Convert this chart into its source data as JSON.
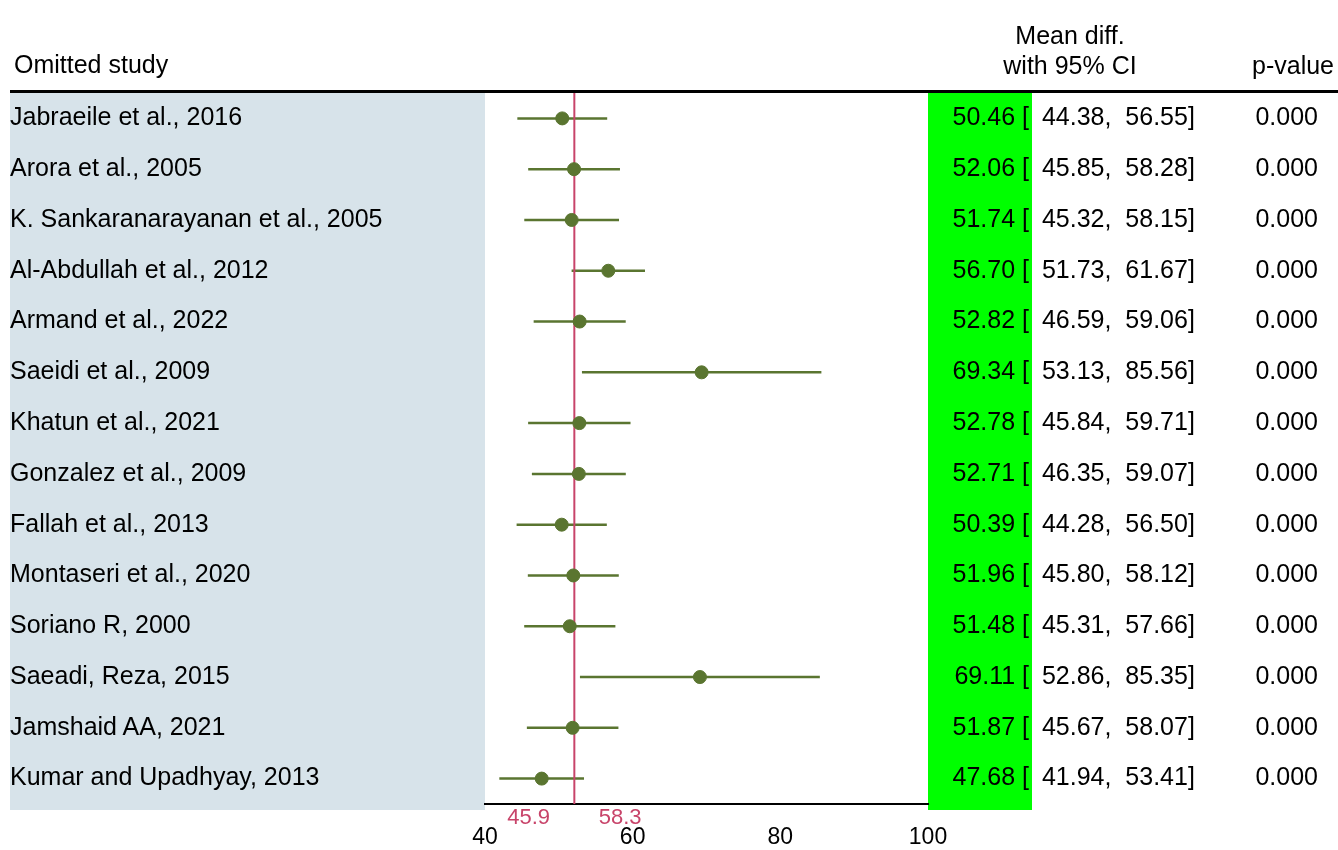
{
  "chart_data": {
    "type": "scatter",
    "orientation": "horizontal",
    "ylabel": "Omitted study",
    "categories": [
      "Jabraeile et al., 2016",
      "Arora et al., 2005",
      "K. Sankaranarayanan et al., 2005",
      "Al-Abdullah et al., 2012",
      "Armand et al., 2022",
      "Saeidi et al., 2009",
      "Khatun et al., 2021",
      "Gonzalez et al., 2009",
      "Fallah et al., 2013",
      "Montaseri et al., 2020",
      "Soriano R, 2000",
      "Saeadi, Reza, 2015",
      "Jamshaid AA, 2021",
      "Kumar and Upadhyay, 2013"
    ],
    "values": [
      50.46,
      52.06,
      51.74,
      56.7,
      52.82,
      69.34,
      52.78,
      52.71,
      50.39,
      51.96,
      51.48,
      69.11,
      51.87,
      47.68
    ],
    "errors": [
      [
        44.38,
        56.55
      ],
      [
        45.85,
        58.28
      ],
      [
        45.32,
        58.15
      ],
      [
        51.73,
        61.67
      ],
      [
        46.59,
        59.06
      ],
      [
        53.13,
        85.56
      ],
      [
        45.84,
        59.71
      ],
      [
        46.35,
        59.07
      ],
      [
        44.28,
        56.5
      ],
      [
        45.8,
        58.12
      ],
      [
        45.31,
        57.66
      ],
      [
        52.86,
        85.35
      ],
      [
        45.67,
        58.07
      ],
      [
        41.94,
        53.41
      ]
    ],
    "value_labels": [
      "50.46 [ 44.38,  56.55]",
      "52.06 [ 45.85,  58.28]",
      "51.74 [ 45.32,  58.15]",
      "56.70 [ 51.73,  61.67]",
      "52.82 [ 46.59,  59.06]",
      "69.34 [ 53.13,  85.56]",
      "52.78 [ 45.84,  59.71]",
      "52.71 [ 46.35,  59.07]",
      "50.39 [ 44.28,  56.50]",
      "51.96 [ 45.80,  58.12]",
      "51.48 [ 45.31,  57.66]",
      "69.11 [ 52.86,  85.35]",
      "51.87 [ 45.67,  58.07]",
      "47.68 [ 41.94,  53.41]"
    ],
    "color": "#5a7530",
    "marker": "circle",
    "xlim": [
      40,
      100
    ],
    "xticks": [
      40,
      60,
      80,
      100
    ],
    "grid": false,
    "legend": false,
    "ref_lines": [
      {
        "axis": "x",
        "value": 52.1,
        "color": "#c8446a"
      }
    ],
    "annotations": [
      "45.9",
      "58.3",
      "Mean diff.\nwith 95% CI",
      "p-value",
      "0.000",
      "0.000",
      "0.000",
      "0.000",
      "0.000",
      "0.000",
      "0.000",
      "0.000",
      "0.000",
      "0.000",
      "0.000",
      "0.000",
      "0.000",
      "0.000"
    ]
  }
}
